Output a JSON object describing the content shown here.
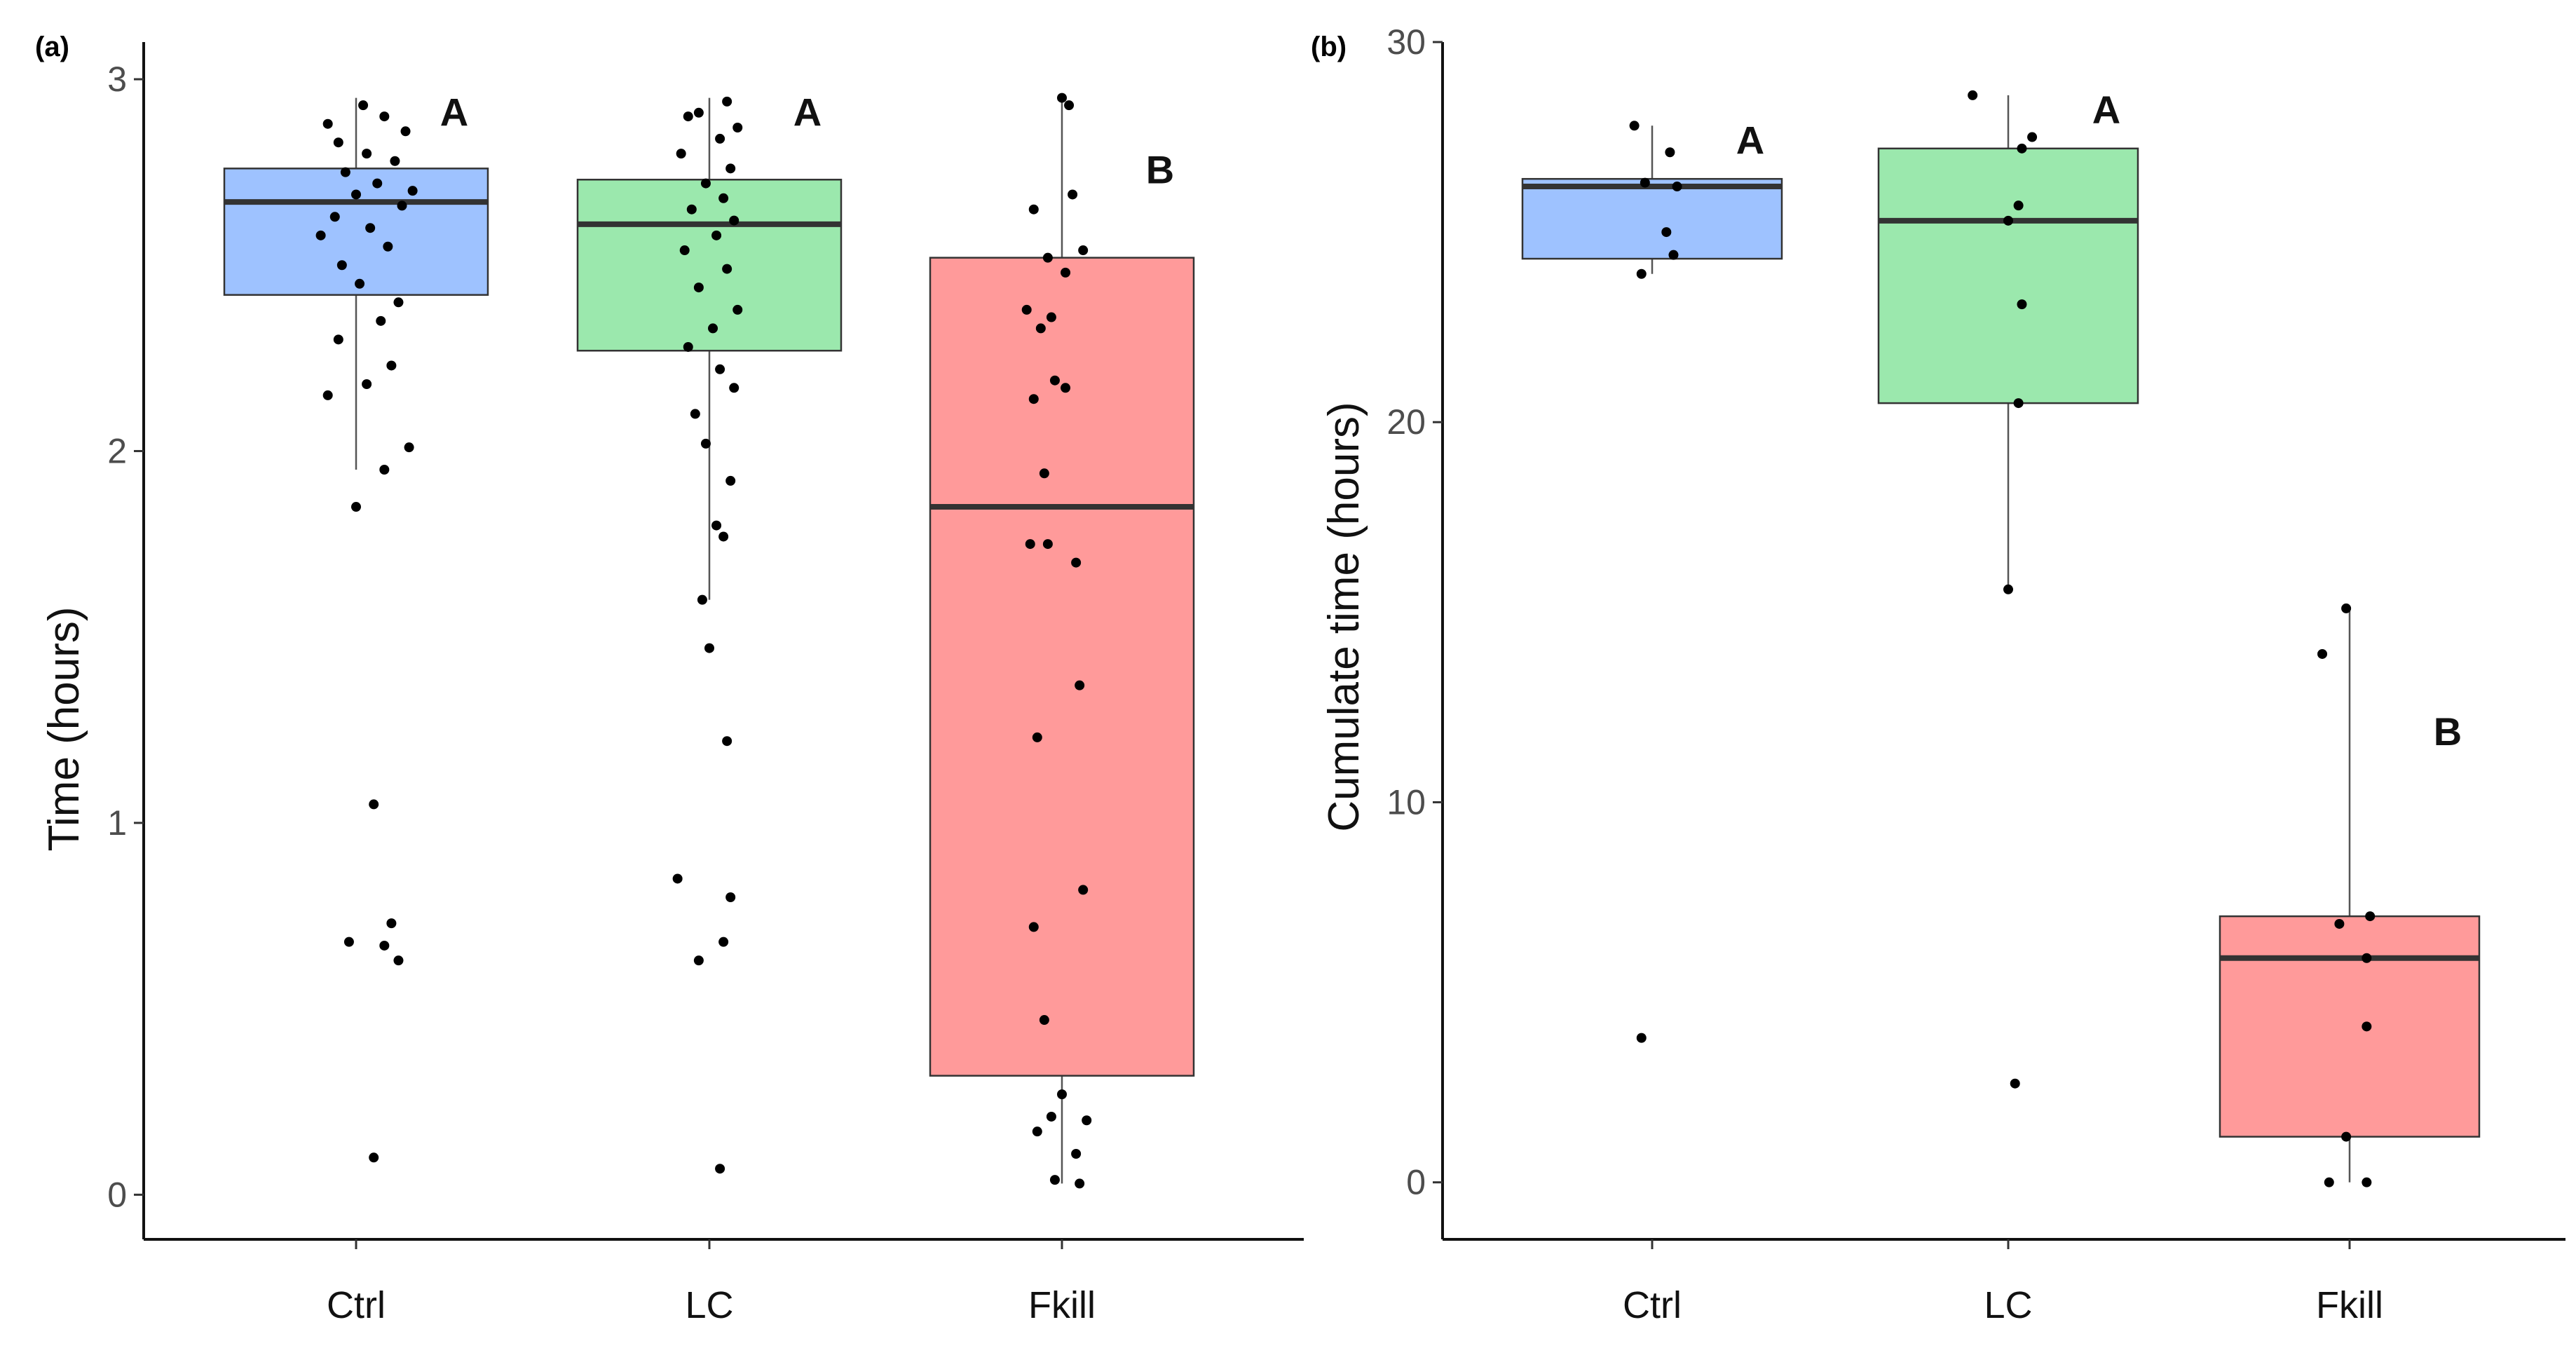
{
  "chart_data": [
    {
      "panel": "(a)",
      "type": "box",
      "ylabel": "Time (hours)",
      "ylim": [
        -0.12,
        3.1
      ],
      "yticks": [
        "0",
        "1",
        "2",
        "3"
      ],
      "categories": [
        "Ctrl",
        "LC",
        "Fkill"
      ],
      "colors": [
        "#9ec2ff",
        "#9be8ad",
        "#ff9a9a"
      ],
      "boxes": [
        {
          "category": "Ctrl",
          "q1": 2.42,
          "median": 2.67,
          "q3": 2.76,
          "whisker_low": 1.95,
          "whisker_high": 2.95,
          "letter": "A"
        },
        {
          "category": "LC",
          "q1": 2.27,
          "median": 2.61,
          "q3": 2.73,
          "whisker_low": 1.6,
          "whisker_high": 2.95,
          "letter": "A"
        },
        {
          "category": "Fkill",
          "q1": 0.32,
          "median": 1.85,
          "q3": 2.52,
          "whisker_low": 0.03,
          "whisker_high": 2.95,
          "letter": "B"
        }
      ],
      "points": [
        [
          1.05,
          0.1
        ],
        [
          1.08,
          0.67
        ],
        [
          1.1,
          0.73
        ],
        [
          0.98,
          0.68
        ],
        [
          1.12,
          0.63
        ],
        [
          1.05,
          1.05
        ],
        [
          1.0,
          1.85
        ],
        [
          1.08,
          1.95
        ],
        [
          1.15,
          2.01
        ],
        [
          0.92,
          2.15
        ],
        [
          1.03,
          2.18
        ],
        [
          1.1,
          2.23
        ],
        [
          0.95,
          2.3
        ],
        [
          1.07,
          2.35
        ],
        [
          1.12,
          2.4
        ],
        [
          1.01,
          2.45
        ],
        [
          0.96,
          2.5
        ],
        [
          1.09,
          2.55
        ],
        [
          1.04,
          2.6
        ],
        [
          0.94,
          2.63
        ],
        [
          1.13,
          2.66
        ],
        [
          1.0,
          2.69
        ],
        [
          1.06,
          2.72
        ],
        [
          0.97,
          2.75
        ],
        [
          1.11,
          2.78
        ],
        [
          1.03,
          2.8
        ],
        [
          0.95,
          2.83
        ],
        [
          1.14,
          2.86
        ],
        [
          1.08,
          2.9
        ],
        [
          1.02,
          2.93
        ],
        [
          0.92,
          2.88
        ],
        [
          1.16,
          2.7
        ],
        [
          0.9,
          2.58
        ],
        [
          2.03,
          0.07
        ],
        [
          1.91,
          0.85
        ],
        [
          1.97,
          0.63
        ],
        [
          2.06,
          0.8
        ],
        [
          2.04,
          0.68
        ],
        [
          2.05,
          1.22
        ],
        [
          2.0,
          1.47
        ],
        [
          1.98,
          1.6
        ],
        [
          2.04,
          1.77
        ],
        [
          2.02,
          1.8
        ],
        [
          2.06,
          1.92
        ],
        [
          1.99,
          2.02
        ],
        [
          1.96,
          2.1
        ],
        [
          2.07,
          2.17
        ],
        [
          2.03,
          2.22
        ],
        [
          1.94,
          2.28
        ],
        [
          2.01,
          2.33
        ],
        [
          2.08,
          2.38
        ],
        [
          1.97,
          2.44
        ],
        [
          2.05,
          2.49
        ],
        [
          1.93,
          2.54
        ],
        [
          2.02,
          2.58
        ],
        [
          2.07,
          2.62
        ],
        [
          1.95,
          2.65
        ],
        [
          2.04,
          2.68
        ],
        [
          1.99,
          2.72
        ],
        [
          2.06,
          2.76
        ],
        [
          1.92,
          2.8
        ],
        [
          2.03,
          2.84
        ],
        [
          2.08,
          2.87
        ],
        [
          1.97,
          2.91
        ],
        [
          2.05,
          2.94
        ],
        [
          1.94,
          2.9
        ],
        [
          3.05,
          0.03
        ],
        [
          2.98,
          0.04
        ],
        [
          3.04,
          0.11
        ],
        [
          2.93,
          0.17
        ],
        [
          3.07,
          0.2
        ],
        [
          2.97,
          0.21
        ],
        [
          3.0,
          0.27
        ],
        [
          2.95,
          0.47
        ],
        [
          3.06,
          0.82
        ],
        [
          2.92,
          0.72
        ],
        [
          2.93,
          1.23
        ],
        [
          3.05,
          1.37
        ],
        [
          3.04,
          1.7
        ],
        [
          2.91,
          1.75
        ],
        [
          2.96,
          1.75
        ],
        [
          2.95,
          1.94
        ],
        [
          3.01,
          2.17
        ],
        [
          2.92,
          2.14
        ],
        [
          2.98,
          2.19
        ],
        [
          2.94,
          2.33
        ],
        [
          2.97,
          2.36
        ],
        [
          2.9,
          2.38
        ],
        [
          3.01,
          2.48
        ],
        [
          3.06,
          2.54
        ],
        [
          2.92,
          2.65
        ],
        [
          3.03,
          2.69
        ],
        [
          3.02,
          2.93
        ],
        [
          3.0,
          2.95
        ],
        [
          2.96,
          2.52
        ]
      ]
    },
    {
      "panel": "(b)",
      "type": "box",
      "ylabel": "Cumulate time (hours)",
      "ylim": [
        -1.5,
        30
      ],
      "yticks": [
        "0",
        "10",
        "20",
        "30"
      ],
      "categories": [
        "Ctrl",
        "LC",
        "Fkill"
      ],
      "colors": [
        "#9ec2ff",
        "#9be8ad",
        "#ff9a9a"
      ],
      "boxes": [
        {
          "category": "Ctrl",
          "q1": 24.3,
          "median": 26.2,
          "q3": 26.4,
          "whisker_low": 23.9,
          "whisker_high": 27.8,
          "letter": "A"
        },
        {
          "category": "LC",
          "q1": 20.5,
          "median": 25.3,
          "q3": 27.2,
          "whisker_low": 15.6,
          "whisker_high": 28.6,
          "letter": "A"
        },
        {
          "category": "Fkill",
          "q1": 1.2,
          "median": 5.9,
          "q3": 7.0,
          "whisker_low": 0.0,
          "whisker_high": 15.1,
          "letter": "B"
        }
      ],
      "points": [
        [
          0.97,
          3.8
        ],
        [
          0.97,
          23.9
        ],
        [
          1.06,
          24.4
        ],
        [
          1.04,
          25.0
        ],
        [
          0.98,
          26.3
        ],
        [
          1.07,
          26.2
        ],
        [
          1.05,
          27.1
        ],
        [
          0.95,
          27.8
        ],
        [
          2.02,
          2.6
        ],
        [
          2.0,
          15.6
        ],
        [
          2.03,
          20.5
        ],
        [
          2.04,
          23.1
        ],
        [
          2.0,
          25.3
        ],
        [
          2.03,
          25.7
        ],
        [
          2.04,
          27.2
        ],
        [
          2.07,
          27.5
        ],
        [
          1.9,
          28.6
        ],
        [
          2.94,
          0.0
        ],
        [
          3.05,
          0.0
        ],
        [
          2.99,
          1.2
        ],
        [
          3.05,
          4.1
        ],
        [
          3.05,
          5.9
        ],
        [
          2.97,
          6.8
        ],
        [
          3.06,
          7.0
        ],
        [
          2.92,
          13.9
        ],
        [
          2.99,
          15.1
        ]
      ]
    }
  ]
}
